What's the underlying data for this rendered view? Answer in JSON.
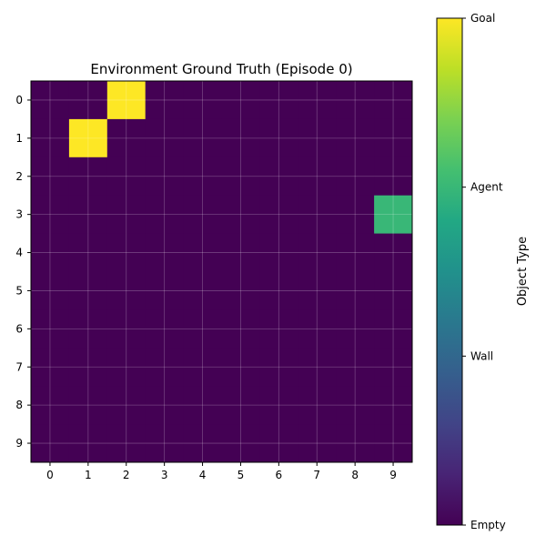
{
  "chart_data": {
    "type": "heatmap",
    "title": "Environment Ground Truth (Episode 0)",
    "xlabel": "",
    "ylabel": "",
    "x_ticks": [
      "0",
      "1",
      "2",
      "3",
      "4",
      "5",
      "6",
      "7",
      "8",
      "9"
    ],
    "y_ticks": [
      "0",
      "1",
      "2",
      "3",
      "4",
      "5",
      "6",
      "7",
      "8",
      "9"
    ],
    "grid": true,
    "colormap": "viridis",
    "value_range": [
      0,
      3
    ],
    "matrix": [
      [
        0,
        0,
        3,
        0,
        0,
        0,
        0,
        0,
        0,
        0
      ],
      [
        0,
        3,
        0,
        0,
        0,
        0,
        0,
        0,
        0,
        0
      ],
      [
        0,
        0,
        0,
        0,
        0,
        0,
        0,
        0,
        0,
        0
      ],
      [
        0,
        0,
        0,
        0,
        0,
        0,
        0,
        0,
        0,
        2
      ],
      [
        0,
        0,
        0,
        0,
        0,
        0,
        0,
        0,
        0,
        0
      ],
      [
        0,
        0,
        0,
        0,
        0,
        0,
        0,
        0,
        0,
        0
      ],
      [
        0,
        0,
        0,
        0,
        0,
        0,
        0,
        0,
        0,
        0
      ],
      [
        0,
        0,
        0,
        0,
        0,
        0,
        0,
        0,
        0,
        0
      ],
      [
        0,
        0,
        0,
        0,
        0,
        0,
        0,
        0,
        0,
        0
      ],
      [
        0,
        0,
        0,
        0,
        0,
        0,
        0,
        0,
        0,
        0
      ]
    ],
    "colorbar": {
      "label": "Object Type",
      "ticks": [
        {
          "value": 0,
          "label": "Empty"
        },
        {
          "value": 1,
          "label": "Wall"
        },
        {
          "value": 2,
          "label": "Agent"
        },
        {
          "value": 3,
          "label": "Goal"
        }
      ]
    }
  }
}
